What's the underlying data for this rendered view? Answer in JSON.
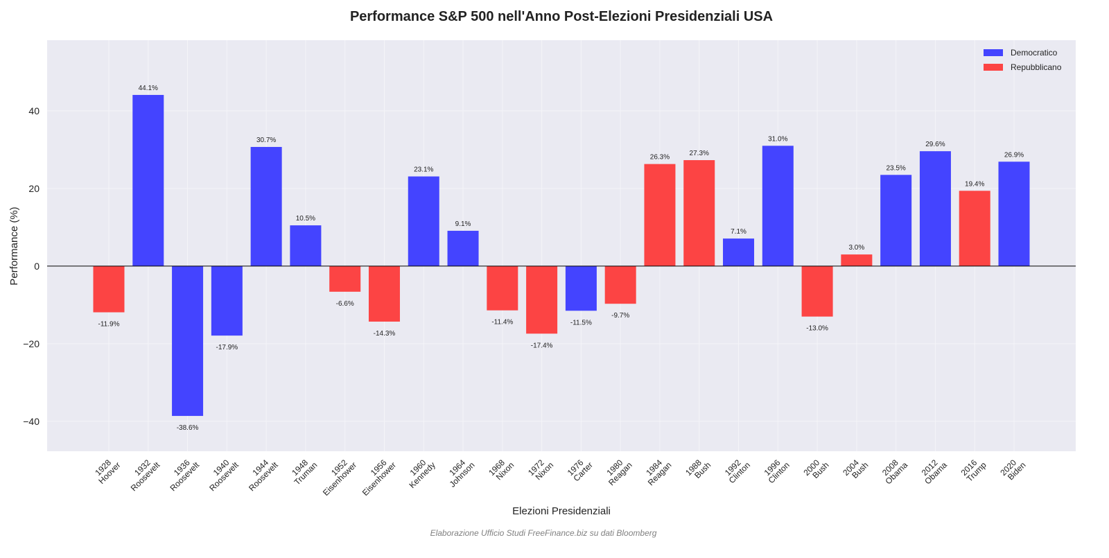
{
  "chart_data": {
    "type": "bar",
    "title": "Performance S&P 500 nell'Anno Post-Elezioni Presidenziali USA",
    "xlabel": "Elezioni Presidenziali",
    "ylabel": "Performance (%)",
    "ylim": [
      -47.7,
      58.2
    ],
    "yticks": [
      -40,
      -20,
      0,
      20,
      40
    ],
    "ytick_labels": [
      "−40",
      "−20",
      "0",
      "20",
      "40"
    ],
    "grid": true,
    "legend_position": "top-right",
    "colors": {
      "Democratico": "#4444ff",
      "Repubblicano": "#fc4444"
    },
    "legend": [
      {
        "label": "Democratico",
        "party": "Democratico"
      },
      {
        "label": "Repubblicano",
        "party": "Repubblicano"
      }
    ],
    "categories": [
      {
        "year": "1928",
        "name": "Hoover"
      },
      {
        "year": "1932",
        "name": "Roosevelt"
      },
      {
        "year": "1936",
        "name": "Roosevelt"
      },
      {
        "year": "1940",
        "name": "Roosevelt"
      },
      {
        "year": "1944",
        "name": "Roosevelt"
      },
      {
        "year": "1948",
        "name": "Truman"
      },
      {
        "year": "1952",
        "name": "Eisenhower"
      },
      {
        "year": "1956",
        "name": "Eisenhower"
      },
      {
        "year": "1960",
        "name": "Kennedy"
      },
      {
        "year": "1964",
        "name": "Johnson"
      },
      {
        "year": "1968",
        "name": "Nixon"
      },
      {
        "year": "1972",
        "name": "Nixon"
      },
      {
        "year": "1976",
        "name": "Carter"
      },
      {
        "year": "1980",
        "name": "Reagan"
      },
      {
        "year": "1984",
        "name": "Reagan"
      },
      {
        "year": "1988",
        "name": "Bush"
      },
      {
        "year": "1992",
        "name": "Clinton"
      },
      {
        "year": "1996",
        "name": "Clinton"
      },
      {
        "year": "2000",
        "name": "Bush"
      },
      {
        "year": "2004",
        "name": "Bush"
      },
      {
        "year": "2008",
        "name": "Obama"
      },
      {
        "year": "2012",
        "name": "Obama"
      },
      {
        "year": "2016",
        "name": "Trump"
      },
      {
        "year": "2020",
        "name": "Biden"
      }
    ],
    "values": [
      -11.9,
      44.1,
      -38.6,
      -17.9,
      30.7,
      10.5,
      -6.6,
      -14.3,
      23.1,
      9.1,
      -11.4,
      -17.4,
      -11.5,
      -9.7,
      26.3,
      27.3,
      7.1,
      31.0,
      -13.0,
      3.0,
      23.5,
      29.6,
      19.4,
      26.9
    ],
    "parties": [
      "Repubblicano",
      "Democratico",
      "Democratico",
      "Democratico",
      "Democratico",
      "Democratico",
      "Repubblicano",
      "Repubblicano",
      "Democratico",
      "Democratico",
      "Repubblicano",
      "Repubblicano",
      "Democratico",
      "Repubblicano",
      "Repubblicano",
      "Repubblicano",
      "Democratico",
      "Democratico",
      "Repubblicano",
      "Repubblicano",
      "Democratico",
      "Democratico",
      "Repubblicano",
      "Democratico"
    ],
    "data_labels": [
      "-11.9%",
      "44.1%",
      "-38.6%",
      "-17.9%",
      "30.7%",
      "10.5%",
      "-6.6%",
      "-14.3%",
      "23.1%",
      "9.1%",
      "-11.4%",
      "-17.4%",
      "-11.5%",
      "-9.7%",
      "26.3%",
      "27.3%",
      "7.1%",
      "31.0%",
      "-13.0%",
      "3.0%",
      "23.5%",
      "29.6%",
      "19.4%",
      "26.9%"
    ],
    "data_labels_shown": [
      true,
      true,
      true,
      true,
      true,
      true,
      true,
      true,
      true,
      true,
      true,
      true,
      true,
      true,
      true,
      true,
      true,
      true,
      true,
      true,
      true,
      true,
      true,
      true
    ]
  },
  "footer": {
    "source": "Elaborazione Ufficio Studi FreeFinance.biz su dati Bloomberg"
  }
}
